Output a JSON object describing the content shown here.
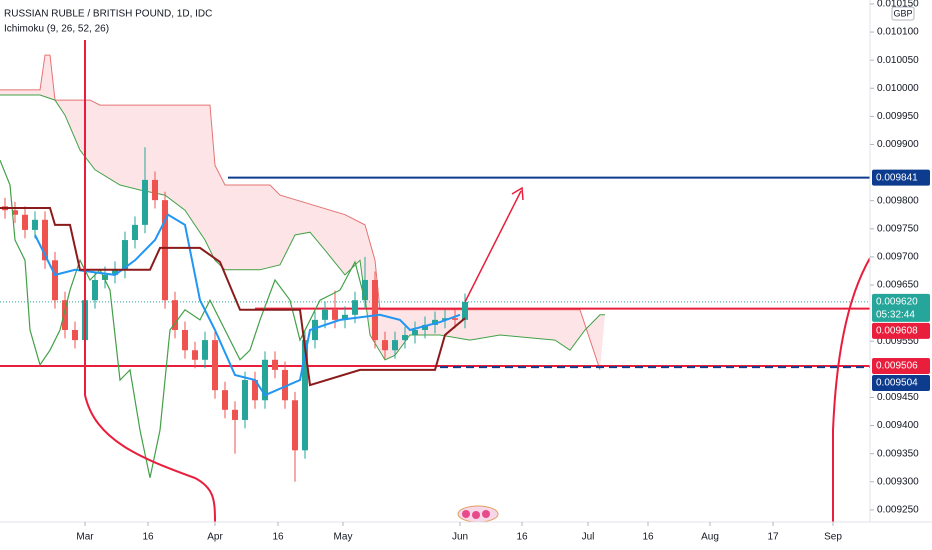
{
  "chart_data": {
    "type": "candlestick",
    "title": "RUSSIAN RUBLE / BRITISH POUND, 1D, IDC",
    "subtitle": "Ichimoku (9, 26, 52, 26)",
    "currency": "GBP",
    "up_color": "#26a69a",
    "down_color": "#ef5350",
    "xlim": [
      -0.5,
      86.5
    ],
    "ylim": [
      0.009232,
      0.010157
    ],
    "xticks": [
      {
        "value": 8,
        "label": "Mar"
      },
      {
        "value": 14.3,
        "label": "16"
      },
      {
        "value": 21,
        "label": "Apr"
      },
      {
        "value": 27.3,
        "label": "16"
      },
      {
        "value": 33.8,
        "label": "May"
      },
      {
        "value": 45.5,
        "label": "Jun"
      },
      {
        "value": 51.7,
        "label": "16"
      },
      {
        "value": 58.3,
        "label": "Jul"
      },
      {
        "value": 64.3,
        "label": "16"
      },
      {
        "value": 70.5,
        "label": "Aug"
      },
      {
        "value": 76.8,
        "label": "17"
      },
      {
        "value": 82.8,
        "label": "Sep"
      }
    ],
    "yticks": [
      {
        "value": 0.01015,
        "label": "0.010150"
      },
      {
        "value": 0.0101,
        "label": "0.010100"
      },
      {
        "value": 0.01005,
        "label": "0.010050"
      },
      {
        "value": 0.01,
        "label": "0.010000"
      },
      {
        "value": 0.00995,
        "label": "0.009950"
      },
      {
        "value": 0.0099,
        "label": "0.009900"
      },
      {
        "value": 0.0098,
        "label": "0.009800"
      },
      {
        "value": 0.00975,
        "label": "0.009750"
      },
      {
        "value": 0.0097,
        "label": "0.009700"
      },
      {
        "value": 0.00965,
        "label": "0.009650"
      },
      {
        "value": 0.00955,
        "label": "0.009550"
      },
      {
        "value": 0.00945,
        "label": "0.009450"
      },
      {
        "value": 0.0094,
        "label": "0.009400"
      },
      {
        "value": 0.00935,
        "label": "0.009350"
      },
      {
        "value": 0.0093,
        "label": "0.009300"
      },
      {
        "value": 0.00925,
        "label": "0.009250"
      }
    ],
    "x": [
      0,
      1,
      2,
      3,
      4,
      5,
      6,
      7,
      8,
      9,
      10,
      11,
      12,
      13,
      14,
      15,
      16,
      17,
      18,
      19,
      20,
      21,
      22,
      23,
      24,
      25,
      26,
      27,
      28,
      29,
      30,
      31,
      32,
      33,
      34,
      35,
      36,
      37,
      38,
      39,
      40,
      41,
      42,
      43,
      44,
      45,
      46
    ],
    "open": [
      0.00979,
      0.009783,
      0.009775,
      0.009748,
      0.009766,
      0.009694,
      0.009623,
      0.00957,
      0.009552,
      0.009623,
      0.009659,
      0.009668,
      0.009677,
      0.00973,
      0.009757,
      0.009837,
      0.009801,
      0.009623,
      0.00957,
      0.009534,
      0.009517,
      0.009552,
      0.009463,
      0.009428,
      0.00941,
      0.009481,
      0.009445,
      0.009517,
      0.009499,
      0.009445,
      0.009356,
      0.009552,
      0.009588,
      0.009606,
      0.009588,
      0.009597,
      0.009623,
      0.009659,
      0.009552,
      0.009534,
      0.009552,
      0.009561,
      0.00957,
      0.009579,
      0.009588,
      0.009591,
      0.009588
    ],
    "high": [
      0.009805,
      0.009798,
      0.00979,
      0.009781,
      0.009781,
      0.009709,
      0.009638,
      0.009585,
      0.009638,
      0.009674,
      0.009683,
      0.009692,
      0.009745,
      0.009772,
      0.009895,
      0.009852,
      0.009816,
      0.009638,
      0.009585,
      0.009549,
      0.009567,
      0.009567,
      0.009478,
      0.009443,
      0.009496,
      0.009496,
      0.009532,
      0.009532,
      0.009514,
      0.00946,
      0.009567,
      0.009603,
      0.009621,
      0.00964,
      0.009612,
      0.009638,
      0.0097,
      0.009674,
      0.009567,
      0.009567,
      0.009576,
      0.009585,
      0.009594,
      0.009603,
      0.009606,
      0.009606,
      0.009635
    ],
    "low": [
      0.009768,
      0.00976,
      0.009733,
      0.009733,
      0.009679,
      0.009608,
      0.009555,
      0.009537,
      0.009537,
      0.009608,
      0.009644,
      0.009653,
      0.009662,
      0.009715,
      0.009742,
      0.009786,
      0.009608,
      0.009555,
      0.009519,
      0.009502,
      0.009502,
      0.009448,
      0.009413,
      0.00935,
      0.009395,
      0.00943,
      0.00943,
      0.009484,
      0.00943,
      0.0093,
      0.009341,
      0.009537,
      0.009573,
      0.009573,
      0.009573,
      0.009582,
      0.009608,
      0.009537,
      0.009519,
      0.009519,
      0.009537,
      0.009546,
      0.009555,
      0.009564,
      0.009573,
      0.009573,
      0.009573
    ],
    "close": [
      0.009783,
      0.009775,
      0.009748,
      0.009766,
      0.009694,
      0.009623,
      0.00957,
      0.009552,
      0.009623,
      0.009659,
      0.009668,
      0.009677,
      0.00973,
      0.009757,
      0.009837,
      0.009801,
      0.009623,
      0.00957,
      0.009534,
      0.009517,
      0.009552,
      0.009463,
      0.009428,
      0.00941,
      0.009481,
      0.009445,
      0.009517,
      0.009499,
      0.009445,
      0.009356,
      0.009552,
      0.009588,
      0.009606,
      0.009588,
      0.009597,
      0.009623,
      0.009659,
      0.009552,
      0.009534,
      0.009552,
      0.009561,
      0.00957,
      0.009579,
      0.009588,
      0.009591,
      0.009588,
      0.00962
    ],
    "cloud_color": "rgba(242,54,69,0.13)",
    "lines": [
      {
        "color": "#e57373",
        "width": 1,
        "x": [
          -0.5,
          3.5,
          4,
          4.5,
          5,
          8.5,
          9.5,
          20.5,
          21,
          22,
          26.5,
          27.5,
          34,
          36,
          37,
          37.5,
          57.5,
          59.5
        ],
        "values": [
          0.009997,
          0.009997,
          0.010059,
          0.010059,
          0.009979,
          0.009979,
          0.00997,
          0.00997,
          0.009863,
          0.009828,
          0.009828,
          0.00981,
          0.009775,
          0.009757,
          0.009694,
          0.009606,
          0.009606,
          0.009499
        ]
      },
      {
        "color": "#43a047",
        "width": 1,
        "x": [
          -0.5,
          3.5,
          5,
          6,
          7.5,
          9,
          11.5,
          13.5,
          16,
          18,
          20,
          21,
          22,
          25.5,
          27.5,
          29,
          30.5,
          32,
          34,
          35.5,
          36.5,
          38,
          39,
          40.5,
          43.5,
          46.5,
          49.5,
          55,
          56.5,
          58,
          59.5,
          60
        ],
        "values": [
          0.009988,
          0.009988,
          0.009979,
          0.009952,
          0.00989,
          0.009855,
          0.009828,
          0.009819,
          0.00981,
          0.009783,
          0.00973,
          0.009694,
          0.009677,
          0.009677,
          0.009686,
          0.009739,
          0.009744,
          0.009712,
          0.009668,
          0.009694,
          0.009561,
          0.009517,
          0.009525,
          0.009561,
          0.009561,
          0.009552,
          0.009561,
          0.009552,
          0.009534,
          0.00957,
          0.009597,
          0.009597
        ]
      },
      {
        "color": "#43a047",
        "width": 1.2,
        "x": [
          -0.5,
          0.5,
          1,
          2,
          2.5,
          3.5,
          4.5,
          5.5,
          6.5,
          7.5,
          8.5,
          9.5,
          10.5,
          11.5,
          12.5,
          13.5,
          14.5,
          15.5,
          16.5,
          18,
          19.5,
          20.5,
          22,
          23.5,
          24.5,
          25.5,
          27,
          28.5,
          29.5,
          31.5,
          33.5,
          35,
          36
        ],
        "values": [
          0.009872,
          0.009828,
          0.00973,
          0.009694,
          0.00957,
          0.009508,
          0.009534,
          0.00957,
          0.009641,
          0.009694,
          0.009659,
          0.009677,
          0.009641,
          0.009481,
          0.009499,
          0.009392,
          0.009307,
          0.009392,
          0.00957,
          0.009606,
          0.009588,
          0.009623,
          0.00957,
          0.009517,
          0.009534,
          0.009588,
          0.009659,
          0.009623,
          0.009552,
          0.009623,
          0.009641,
          0.009691,
          0.009623
        ]
      },
      {
        "color": "#2196f3",
        "width": 2,
        "x": [
          3,
          5,
          7,
          11,
          13,
          15,
          16.3,
          18,
          19.5,
          21,
          23,
          25,
          26,
          29.5,
          30.5,
          33.5,
          37.5,
          39.5,
          40.5,
          43.5,
          45.5
        ],
        "values": [
          0.009739,
          0.009668,
          0.009677,
          0.009668,
          0.009694,
          0.00973,
          0.009775,
          0.009757,
          0.009623,
          0.00957,
          0.00949,
          0.009481,
          0.009454,
          0.009481,
          0.00957,
          0.009588,
          0.009597,
          0.009588,
          0.00957,
          0.009584,
          0.009597
        ]
      },
      {
        "color": "#8b1a1a",
        "width": 2,
        "x": [
          -0.5,
          4.5,
          5,
          6.5,
          7.5,
          14.5,
          15.5,
          19.5,
          21.5,
          23.5,
          29.5,
          30.5,
          35.5,
          37.5,
          43,
          44,
          46
        ],
        "values": [
          0.009787,
          0.009787,
          0.009757,
          0.009757,
          0.009677,
          0.009677,
          0.009716,
          0.009716,
          0.009691,
          0.009606,
          0.009606,
          0.009472,
          0.009499,
          0.009499,
          0.009499,
          0.009561,
          0.009591
        ]
      }
    ],
    "levels": [
      {
        "value": 0.009841,
        "color": "#0d3c8f",
        "from": 22.3,
        "dashed": false
      },
      {
        "value": 0.009608,
        "color": "#e91e3c",
        "from": 25,
        "dashed": false
      },
      {
        "value": 0.009506,
        "color": "#e91e3c",
        "from": -0.5,
        "dashed": false
      },
      {
        "value": 0.009504,
        "color": "#0d3c8f",
        "from": 43.5,
        "dashed": true
      }
    ],
    "last_price": {
      "value": 0.00962,
      "label": "0.009620",
      "color": "#26a69a"
    },
    "countdown": "05:32:44"
  }
}
